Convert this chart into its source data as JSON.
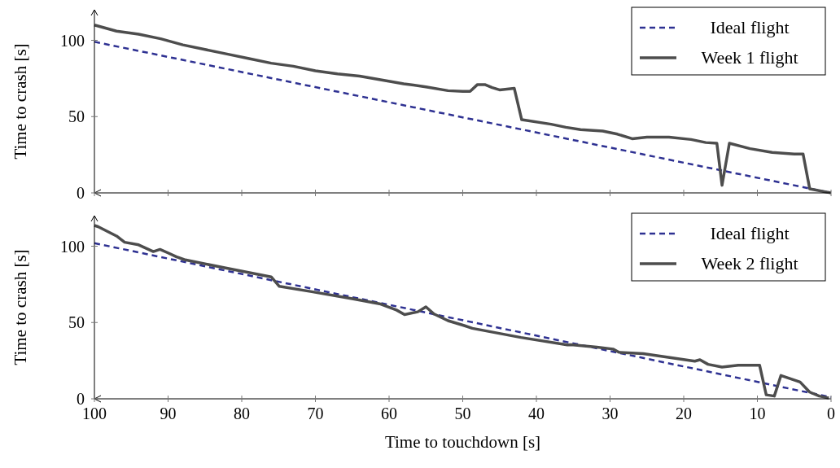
{
  "chart_data": [
    {
      "type": "line",
      "ylabel": "Time to crash [s]",
      "xlim": [
        100,
        0
      ],
      "xticks": [
        100,
        90,
        80,
        70,
        60,
        50,
        40,
        30,
        20,
        10,
        0
      ],
      "ylim": [
        0,
        120
      ],
      "yticks": [
        0,
        50,
        100
      ],
      "tick_labels": "y",
      "legend": "top right",
      "grid": false,
      "series": [
        {
          "name": "Ideal flight",
          "color": "#2e3192",
          "line_style": "dashed",
          "x": [
            100,
            0
          ],
          "values": [
            99,
            0
          ]
        },
        {
          "name": "Week 1 flight",
          "color": "#4d4d4d",
          "line_style": "solid",
          "x": [
            100,
            97,
            94,
            91,
            88,
            85,
            82,
            79,
            76,
            73,
            70,
            67,
            64,
            61,
            58,
            55,
            52,
            50,
            49,
            48,
            47,
            46,
            45,
            43,
            42,
            38,
            36,
            34,
            31,
            29,
            27,
            25,
            22,
            19,
            17,
            15.5,
            14.8,
            13.8,
            11,
            8,
            5,
            3.8,
            2.9,
            0
          ],
          "values": [
            110,
            106,
            104,
            101,
            97,
            94,
            91,
            88,
            85,
            83,
            80,
            78,
            76.5,
            74,
            71.5,
            69.5,
            67,
            66.5,
            66.5,
            71,
            71,
            69,
            67.5,
            68.5,
            48,
            45,
            43,
            41.5,
            40.5,
            38.5,
            35.5,
            36.5,
            36.5,
            35,
            33,
            32.5,
            5,
            32.5,
            29,
            26.5,
            25.5,
            25.5,
            2.7,
            0
          ]
        }
      ]
    },
    {
      "type": "line",
      "xlabel": "Time to touchdown [s]",
      "ylabel": "Time to crash [s]",
      "xlim": [
        100,
        0
      ],
      "xticks": [
        100,
        90,
        80,
        70,
        60,
        50,
        40,
        30,
        20,
        10,
        0
      ],
      "ylim": [
        0,
        120
      ],
      "yticks": [
        0,
        50,
        100
      ],
      "legend": "top right",
      "grid": false,
      "series": [
        {
          "name": "Ideal flight",
          "color": "#2e3192",
          "line_style": "dashed",
          "x": [
            100,
            0
          ],
          "values": [
            102,
            1
          ]
        },
        {
          "name": "Week 2 flight",
          "color": "#4d4d4d",
          "line_style": "solid",
          "x": [
            100,
            99.5,
            97,
            95.9,
            94,
            92,
            91.1,
            90,
            88.9,
            87.8,
            82.6,
            76,
            74.9,
            70.5,
            65,
            61.3,
            59,
            57.9,
            56.1,
            55,
            53.9,
            52,
            49.8,
            48.7,
            42.1,
            35.8,
            35.3,
            31.8,
            29.6,
            28.8,
            25.5,
            18.5,
            17.8,
            16.7,
            14.8,
            12.6,
            9.7,
            8.8,
            7.7,
            6.8,
            4.2,
            2.9,
            1.6,
            0.3
          ],
          "values": [
            113.6,
            112.8,
            106.7,
            102.6,
            100.9,
            96.5,
            97.9,
            95.6,
            93.1,
            91.2,
            86.1,
            79.9,
            73.7,
            70.2,
            65.6,
            62.3,
            58.2,
            55.2,
            57,
            60.3,
            55.6,
            51.2,
            48,
            46.2,
            40.2,
            35.3,
            35.5,
            33.9,
            32.6,
            30.5,
            29.6,
            24.7,
            25.6,
            22.6,
            20.8,
            22,
            22,
            2.6,
            1.8,
            15.3,
            11,
            4.4,
            1.8,
            0.5
          ]
        }
      ]
    }
  ]
}
